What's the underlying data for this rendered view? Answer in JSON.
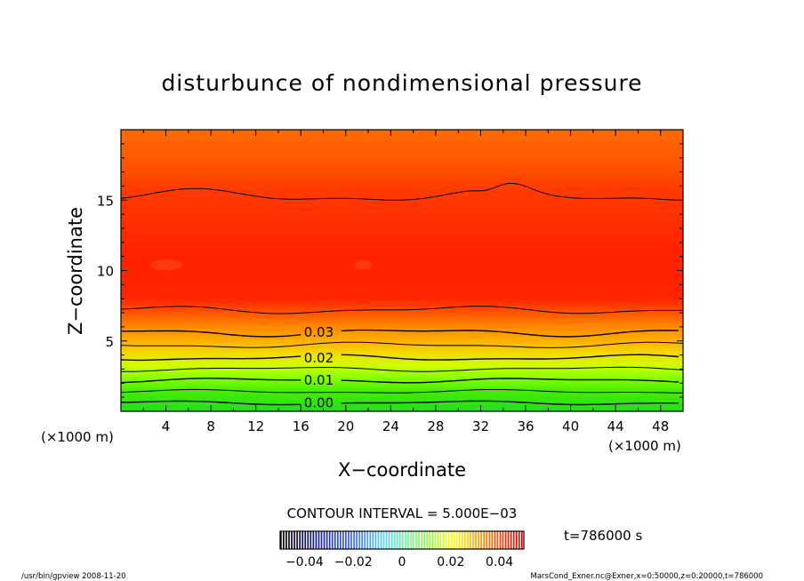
{
  "chart_data": {
    "type": "contour",
    "title": "disturbunce of nondimensional pressure",
    "xlabel": "X−coordinate",
    "ylabel": "Z−coordinate",
    "x_unit_left": "(×1000 m)",
    "x_unit_right": "(×1000 m)",
    "xlim": [
      0,
      50
    ],
    "ylim": [
      0,
      20
    ],
    "x_ticks": [
      4,
      8,
      12,
      16,
      20,
      24,
      28,
      32,
      36,
      40,
      44,
      48
    ],
    "y_ticks": [
      5,
      10,
      15
    ],
    "contour_labels": [
      {
        "text": "0.03",
        "x": 17.6,
        "z": 5.6
      },
      {
        "text": "0.02",
        "x": 17.6,
        "z": 3.8
      },
      {
        "text": "0.01",
        "x": 17.6,
        "z": 2.2
      },
      {
        "text": "0.00",
        "x": 17.6,
        "z": 0.6
      }
    ],
    "contour_interval": "CONTOUR INTERVAL = 5.000E−03",
    "colorbar": {
      "ticks": [
        "−0.04",
        "−0.02",
        "0",
        "0.02",
        "0.04"
      ],
      "tick_values": [
        -0.04,
        -0.02,
        0,
        0.02,
        0.04
      ],
      "range": [
        -0.05,
        0.05
      ]
    },
    "time_label": "t=786000  s",
    "footer_left": "/usr/bin/gpview   2008-11-20",
    "footer_right": "MarsCond_Exner.nc@Exner,x=0:50000,z=0:20000,t=786000"
  }
}
